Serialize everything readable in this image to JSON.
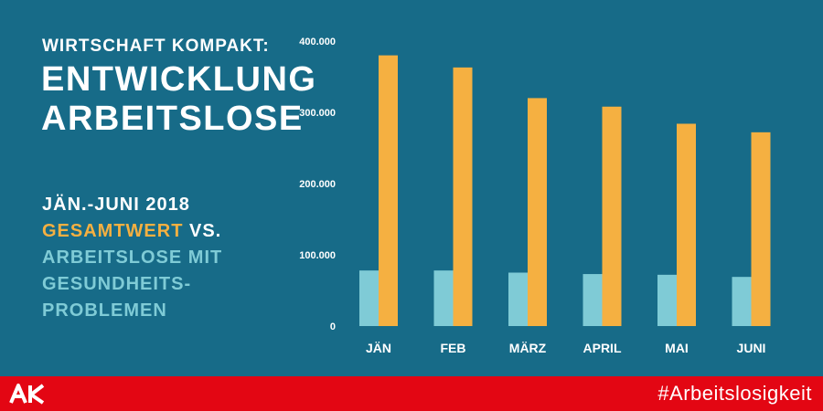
{
  "header": {
    "kicker": "WIRTSCHAFT KOMPAKT:",
    "title_line1": "ENTWICKLUNG",
    "title_line2": "ARBEITSLOSE"
  },
  "legend": {
    "period": "JÄN.-JUNI 2018",
    "total_label": "GESAMTWERT",
    "vs": " VS.",
    "health_line1": "ARBEITSLOSE MIT",
    "health_line2": "GESUNDHEITS-",
    "health_line3": "PROBLEMEN"
  },
  "footer": {
    "logo": "AK",
    "hashtag": "#Arbeitslosigkeit"
  },
  "colors": {
    "background": "#176b88",
    "total": "#f5b041",
    "health": "#7fcbd6",
    "footer": "#e30613"
  },
  "chart_data": {
    "type": "bar",
    "categories": [
      "JÄN",
      "FEB",
      "MÄRZ",
      "APRIL",
      "MAI",
      "JUNI"
    ],
    "series": [
      {
        "name": "ARBEITSLOSE MIT GESUNDHEITSPROBLEMEN",
        "color": "#7fcbd6",
        "values": [
          78000,
          78000,
          75000,
          73000,
          72000,
          69000
        ]
      },
      {
        "name": "GESAMTWERT",
        "color": "#f5b041",
        "values": [
          380000,
          363000,
          320000,
          308000,
          284000,
          272000
        ]
      }
    ],
    "ylim": [
      0,
      400000
    ],
    "yticks": [
      0,
      100000,
      200000,
      300000,
      400000
    ],
    "ytick_labels": [
      "0",
      "100.000",
      "200.000",
      "300.000",
      "400.000"
    ],
    "title": "",
    "xlabel": "",
    "ylabel": "",
    "grid": false,
    "legend": "left"
  }
}
